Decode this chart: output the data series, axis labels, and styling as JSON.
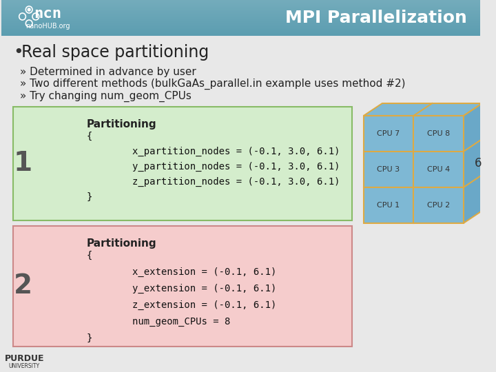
{
  "title": "MPI Parallelization",
  "header_bg_color": "#5b9db0",
  "slide_bg_color": "#e8e8e8",
  "bullet_main": "Real space partitioning",
  "bullets": [
    "» Determined in advance by user",
    "» Two different methods (bulkGaAs_parallel.in example uses method #2)",
    "» Try changing num_geom_CPUs"
  ],
  "box1_bg": "#d4edcc",
  "box1_border": "#88bb66",
  "box1_label": "1",
  "box1_title": "Partitioning",
  "box1_lines": [
    "{",
    "        x_partition_nodes = (-0.1, 3.0, 6.1)",
    "        y_partition_nodes = (-0.1, 3.0, 6.1)",
    "        z_partition_nodes = (-0.1, 3.0, 6.1)",
    "}"
  ],
  "box2_bg": "#f5cccc",
  "box2_border": "#cc8888",
  "box2_label": "2",
  "box2_title": "Partitioning",
  "box2_lines": [
    "{",
    "        x_extension = (-0.1, 6.1)",
    "        y_extension = (-0.1, 6.1)",
    "        z_extension = (-0.1, 6.1)",
    "        num_geom_CPUs = 8",
    "}"
  ],
  "cube_face_color": "#7eb8d4",
  "cube_edge_color": "#ddaa44",
  "cube_labels": [
    [
      "CPU 7",
      "CPU 8"
    ],
    [
      "CPU 3",
      "CPU 4"
    ],
    [
      "CPU 1",
      "CPU 2"
    ]
  ],
  "cube_depth_label": "6",
  "logo_bg": "#3a7a9a"
}
